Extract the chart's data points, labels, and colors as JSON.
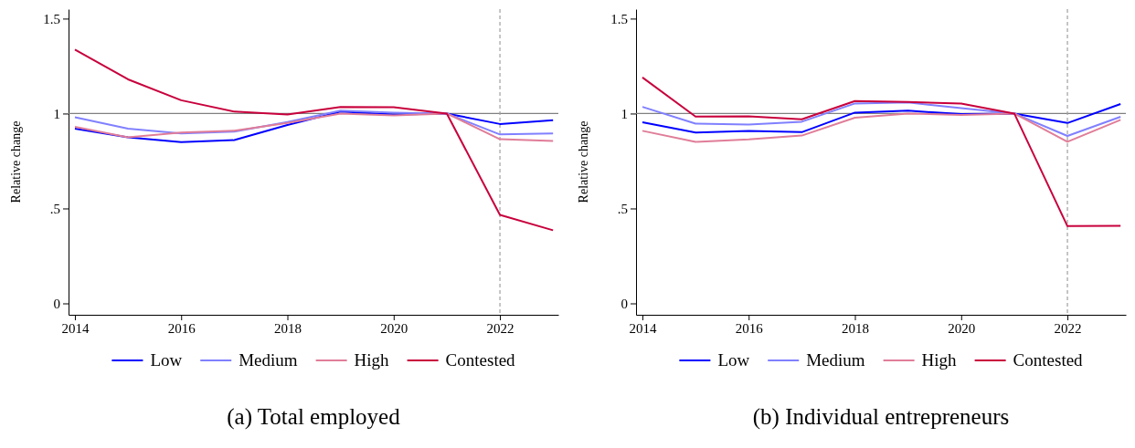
{
  "chart_data": [
    {
      "type": "line",
      "title": "(a) Total employed",
      "ylabel": "Relative change",
      "x": [
        2014,
        2015,
        2016,
        2017,
        2018,
        2019,
        2020,
        2021,
        2022,
        2023
      ],
      "xlim": [
        2013.88,
        2023.1
      ],
      "xticks": [
        2014,
        2016,
        2018,
        2020,
        2022
      ],
      "ylim": [
        -0.06,
        1.55
      ],
      "yticks": [
        {
          "value": 0,
          "label": "0"
        },
        {
          "value": 0.5,
          "label": ".5"
        },
        {
          "value": 1,
          "label": "1"
        },
        {
          "value": 1.5,
          "label": "1.5"
        }
      ],
      "grid": false,
      "legend": "bottom",
      "marker": "none",
      "line_style": "solid",
      "ref_lines": [
        {
          "axis": "y",
          "value": 1,
          "color": "#808080",
          "line_style": "solid"
        },
        {
          "axis": "x",
          "value": 2022,
          "color": "#a0a0a0",
          "line_style": "dashed"
        }
      ],
      "series": [
        {
          "name": "Low",
          "color": "#0000ff",
          "values": [
            0.92,
            0.875,
            0.85,
            0.86,
            0.94,
            1.01,
            0.995,
            1,
            0.945,
            0.965
          ]
        },
        {
          "name": "Medium",
          "color": "#8080ff",
          "values": [
            0.98,
            0.92,
            0.895,
            0.905,
            0.955,
            1.015,
            1.005,
            1,
            0.89,
            0.895
          ]
        },
        {
          "name": "High",
          "color": "#e07d98",
          "values": [
            0.93,
            0.875,
            0.9,
            0.91,
            0.95,
            1.0,
            0.99,
            1,
            0.865,
            0.855
          ]
        },
        {
          "name": "Contested",
          "color": "#c8003c",
          "values": [
            1.337,
            1.18,
            1.07,
            1.01,
            0.995,
            1.035,
            1.033,
            1,
            0.466,
            0.385
          ]
        }
      ]
    },
    {
      "type": "line",
      "title": "(b) Individual entrepreneurs",
      "ylabel": "Relative change",
      "x": [
        2014,
        2015,
        2016,
        2017,
        2018,
        2019,
        2020,
        2021,
        2022,
        2023
      ],
      "xlim": [
        2013.88,
        2023.1
      ],
      "xticks": [
        2014,
        2016,
        2018,
        2020,
        2022
      ],
      "ylim": [
        -0.06,
        1.55
      ],
      "yticks": [
        {
          "value": 0,
          "label": "0"
        },
        {
          "value": 0.5,
          "label": ".5"
        },
        {
          "value": 1,
          "label": "1"
        },
        {
          "value": 1.5,
          "label": "1.5"
        }
      ],
      "grid": false,
      "legend": "bottom",
      "marker": "none",
      "line_style": "solid",
      "ref_lines": [
        {
          "axis": "y",
          "value": 1,
          "color": "#808080",
          "line_style": "solid"
        },
        {
          "axis": "x",
          "value": 2022,
          "color": "#a0a0a0",
          "line_style": "dashed"
        }
      ],
      "series": [
        {
          "name": "Low",
          "color": "#0000ff",
          "values": [
            0.954,
            0.9,
            0.909,
            0.902,
            1.005,
            1.015,
            0.997,
            1,
            0.95,
            1.05
          ]
        },
        {
          "name": "Medium",
          "color": "#8080ff",
          "values": [
            1.035,
            0.947,
            0.942,
            0.957,
            1.053,
            1.058,
            1.028,
            1,
            0.882,
            0.983
          ]
        },
        {
          "name": "High",
          "color": "#e07d98",
          "values": [
            0.909,
            0.851,
            0.864,
            0.884,
            0.978,
            1.0,
            0.993,
            1,
            0.851,
            0.967
          ]
        },
        {
          "name": "Contested",
          "color": "#c8003c",
          "values": [
            1.19,
            0.984,
            0.985,
            0.97,
            1.066,
            1.061,
            1.053,
            1,
            0.407,
            0.409
          ]
        }
      ]
    }
  ]
}
